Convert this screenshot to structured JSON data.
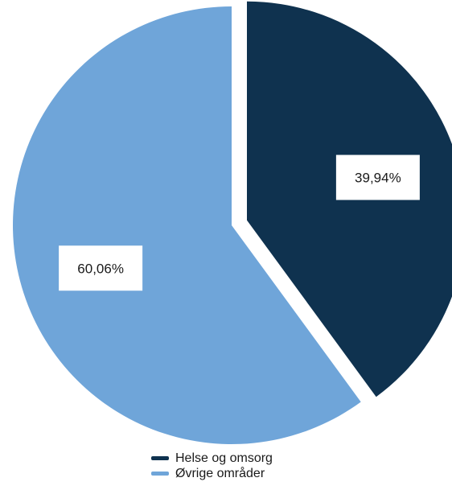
{
  "chart_data": {
    "type": "pie",
    "title": "",
    "legend_placement": "bottom",
    "slices": [
      {
        "name": "Helse og omsorg",
        "value": 39.94,
        "label": "39,94%",
        "color": "#0f324f",
        "exploded": true
      },
      {
        "name": "Øvrige områder",
        "value": 60.06,
        "label": "60,06%",
        "color": "#6fa5d9",
        "exploded": false
      }
    ]
  }
}
